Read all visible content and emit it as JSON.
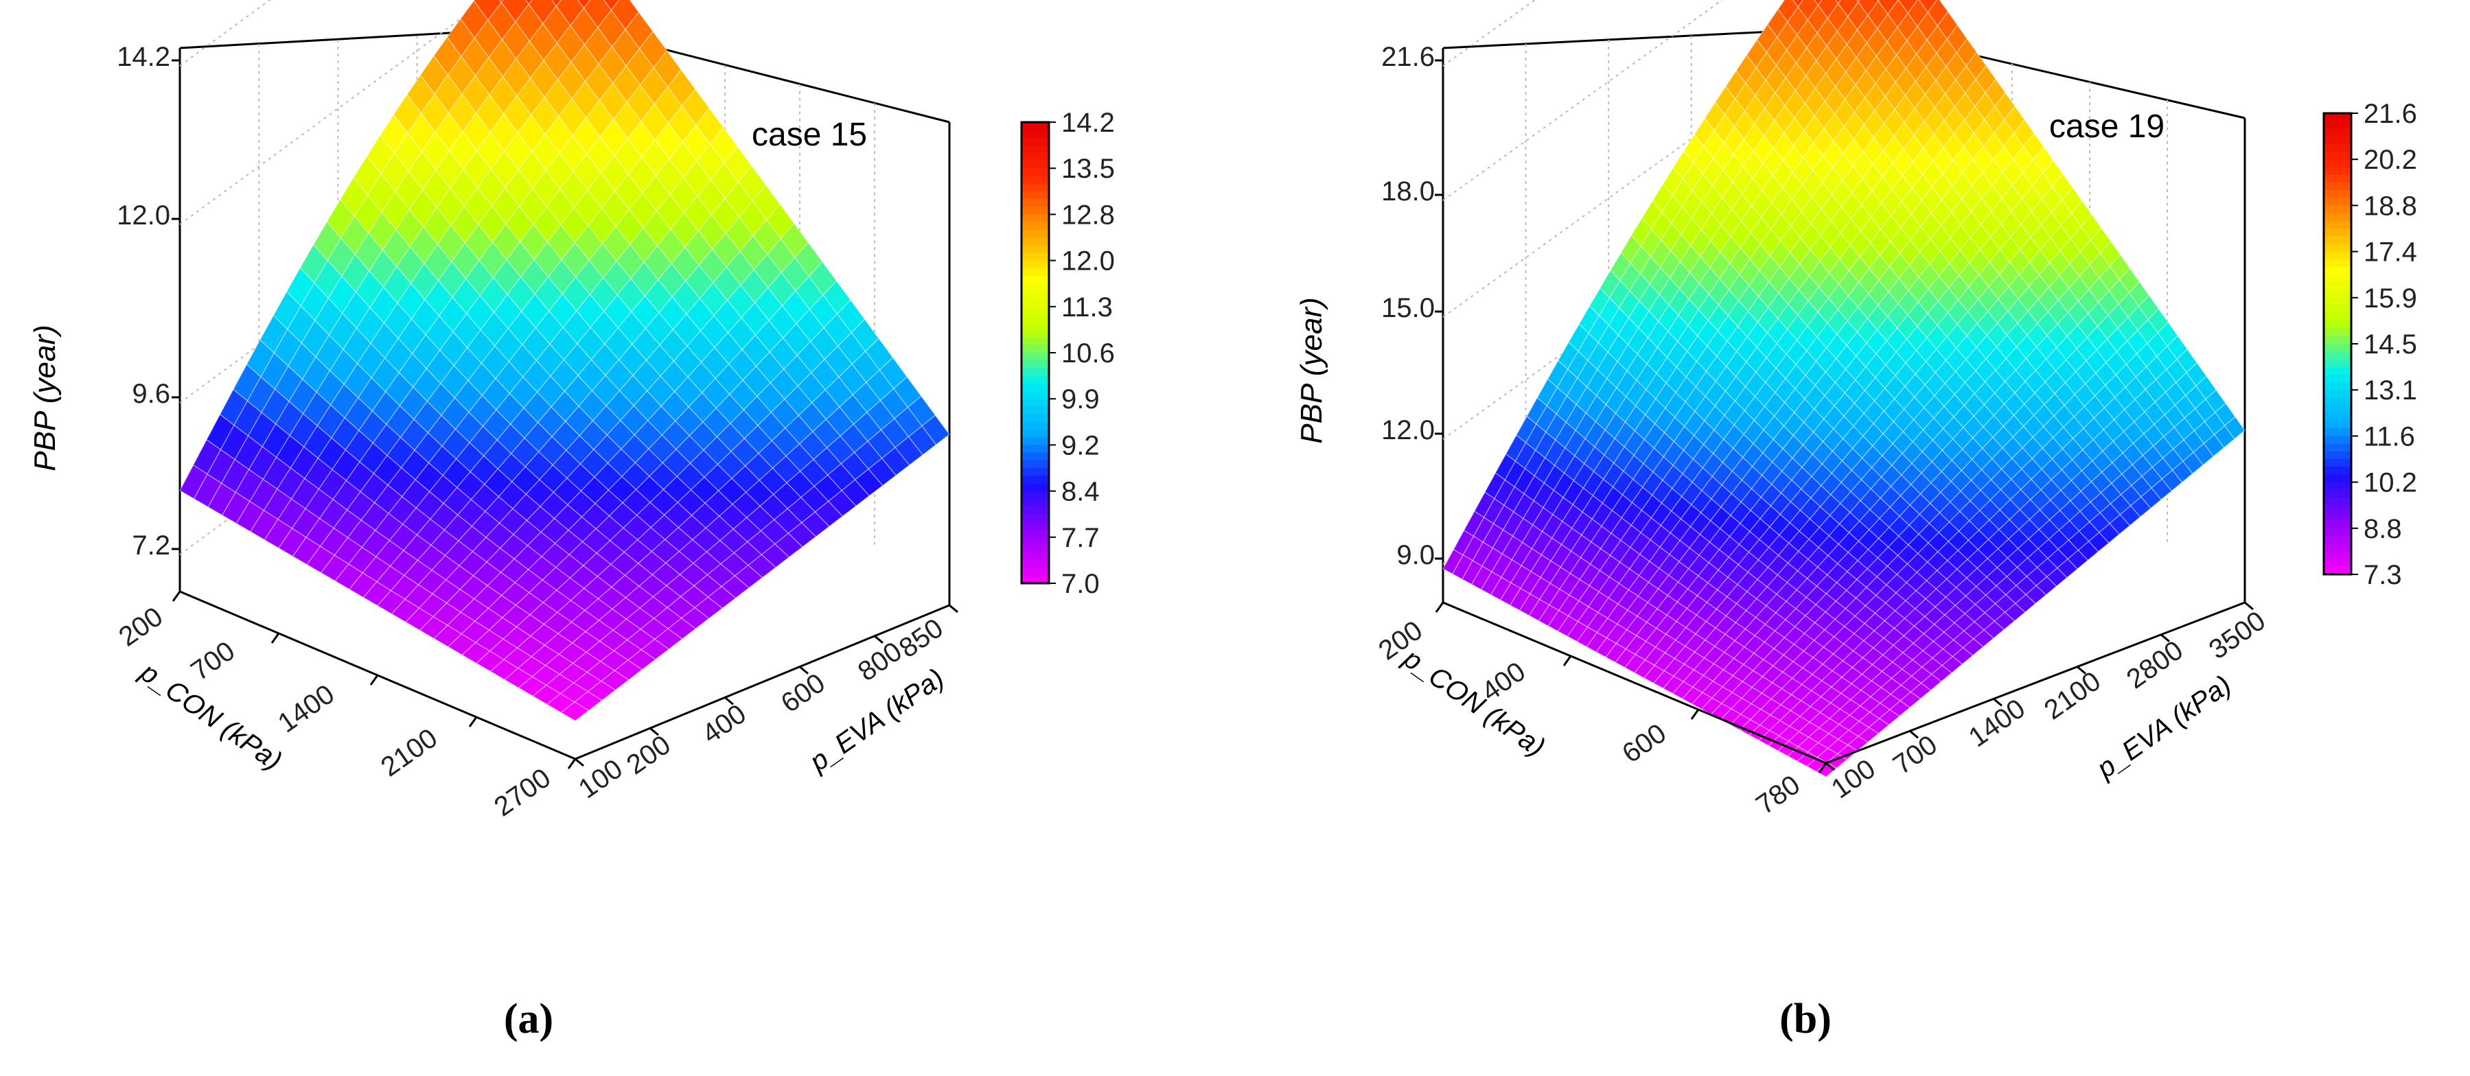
{
  "chart_data": [
    {
      "type": "surface3d",
      "panel": "(a)",
      "annotation": "case 15",
      "zlabel": "PBP  (year)",
      "xlabel": "p_CON (kPa)",
      "ylabel": "p_EVA (kPa)",
      "x_ticks": [
        "200",
        "700",
        "1400",
        "2100",
        "2700"
      ],
      "x_range": [
        200,
        2700
      ],
      "y_ticks": [
        "100",
        "200",
        "400",
        "600",
        "800",
        "850"
      ],
      "y_range": [
        100,
        850
      ],
      "z_ticks": [
        "7.2",
        "9.6",
        "12.0",
        "14.2"
      ],
      "z_range": [
        7.2,
        14.2
      ],
      "colorbar_ticks": [
        "14.2",
        "13.5",
        "12.8",
        "12.0",
        "11.3",
        "10.6",
        "9.9",
        "9.2",
        "8.4",
        "7.7",
        "7.0"
      ],
      "colorbar_range": [
        7.0,
        14.2
      ],
      "surface_corners": [
        {
          "x": 200,
          "y": 100,
          "z": 7.9
        },
        {
          "x": 2700,
          "y": 100,
          "z": 7.0
        },
        {
          "x": 2700,
          "y": 850,
          "z": 8.9
        },
        {
          "x": 200,
          "y": 850,
          "z": 14.2
        }
      ],
      "surface_peak": {
        "x": 200,
        "y": 850,
        "z": 14.2
      }
    },
    {
      "type": "surface3d",
      "panel": "(b)",
      "annotation": "case 19",
      "zlabel": "PBP  (year)",
      "xlabel": "p_CON (kPa)",
      "ylabel": "p_EVA (kPa)",
      "x_ticks": [
        "200",
        "400",
        "600",
        "780"
      ],
      "x_range": [
        200,
        780
      ],
      "y_ticks": [
        "100",
        "700",
        "1400",
        "2100",
        "2800",
        "3500"
      ],
      "y_range": [
        100,
        3500
      ],
      "z_ticks": [
        "9.0",
        "12.0",
        "15.0",
        "18.0",
        "21.6"
      ],
      "z_range": [
        7.3,
        21.6
      ],
      "colorbar_ticks": [
        "21.6",
        "20.2",
        "18.8",
        "17.4",
        "15.9",
        "14.5",
        "13.1",
        "11.6",
        "10.2",
        "8.8",
        "7.3"
      ],
      "colorbar_range": [
        7.3,
        21.6
      ],
      "surface_corners": [
        {
          "x": 200,
          "y": 100,
          "z": 8.5
        },
        {
          "x": 780,
          "y": 100,
          "z": 7.3
        },
        {
          "x": 780,
          "y": 3500,
          "z": 12.0
        },
        {
          "x": 200,
          "y": 3500,
          "z": 21.6
        }
      ],
      "surface_peak": {
        "x": 200,
        "y": 3500,
        "z": 21.6
      }
    }
  ],
  "captions": {
    "a": "(a)",
    "b": "(b)"
  },
  "colormap": [
    "#ff00ff",
    "#9a00ff",
    "#1a10ff",
    "#00aaff",
    "#00f0f0",
    "#c0ff00",
    "#ffff00",
    "#ff9900",
    "#ff2a00",
    "#e60000"
  ]
}
